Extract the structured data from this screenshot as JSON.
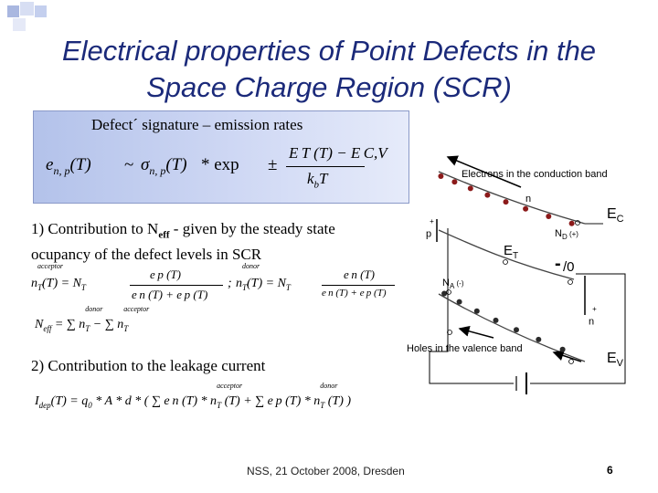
{
  "title_line1": "Electrical properties of Point Defects in the",
  "title_line2": "Space Charge Region (SCR)",
  "signature": {
    "label": "Defect´ signature –  emission rates",
    "formula": {
      "lhs_e": "e",
      "lhs_sub": "n, p",
      "lhs_arg": "(T)",
      "sim": "~",
      "sigma": "σ",
      "sigma_sub": "n, p",
      "sigma_arg": "(T)",
      "times_exp": "* exp",
      "pm": "±",
      "num": "E T (T) − E C,V",
      "den_k": "k",
      "den_sub": "b",
      "den_T": "T"
    }
  },
  "section1": {
    "text_before": "1) Contribution to N",
    "text_sub": "eff",
    "text_after": " - given by the steady state ocupancy of the defect levels in SCR",
    "eq1_a": "n",
    "eq1_a_sup": "acceptor",
    "eq1_a_sub": "T",
    "eq1_b": "(T) = N",
    "eq1_b_sub": "T",
    "eq1_frac_num": "e p (T)",
    "eq1_frac_den": "e n (T) + e p (T)",
    "eq1_sep": ";",
    "eq2_a": "n",
    "eq2_a_sup": "donor",
    "eq2_a_sub": "T",
    "eq2_b": "(T) = N",
    "eq2_b_sub": "T",
    "eq2_frac_num": "e n (T)",
    "eq2_frac_den": "e n (T) + e p (T)",
    "neff_lhs": "N",
    "neff_sub": "eff",
    "neff_rhs": "= ∑ n",
    "neff_sup1": "donor",
    "neff_sub1": "T",
    "neff_minus": " − ∑ n",
    "neff_sup2": "acceptor",
    "neff_sub2": "T"
  },
  "section2": {
    "text": "2) Contribution to the leakage current",
    "eq_a": "I",
    "eq_a_sub": "dep",
    "eq_b": "(T) = q",
    "eq_b_sub": "0",
    "eq_c": " * A * d * ( ∑ e n (T) * n",
    "eq_c_sup": "acceptor",
    "eq_c_sub": "T",
    "eq_d": " (T) + ∑ e p (T) * n",
    "eq_d_sup": "donor",
    "eq_d_sub": "T",
    "eq_e": " (T) )"
  },
  "diagram": {
    "electrons_label": "Electrons in the conduction band",
    "n_label": "n",
    "ec_label": "E",
    "ec_sub": "C",
    "nd_label": "N",
    "nd_sub": "D",
    "nd_charge": " (+)",
    "et_label": "E",
    "et_sub": "T",
    "minus_label": "-",
    "zero_label": "/0",
    "p_plus_label": "p",
    "p_plus_sup": "+",
    "na_label": "N",
    "na_sub": "A",
    "na_charge": " (-)",
    "n_plus_label": "n",
    "n_plus_sup": "+",
    "holes_label": "Holes in the valence band",
    "ev_label": "E",
    "ev_sub": "V",
    "electron_color": "#8b1a1a",
    "hole_color": "#2a2a2a"
  },
  "footer": "NSS, 21 October 2008, Dresden",
  "page_number": "6"
}
